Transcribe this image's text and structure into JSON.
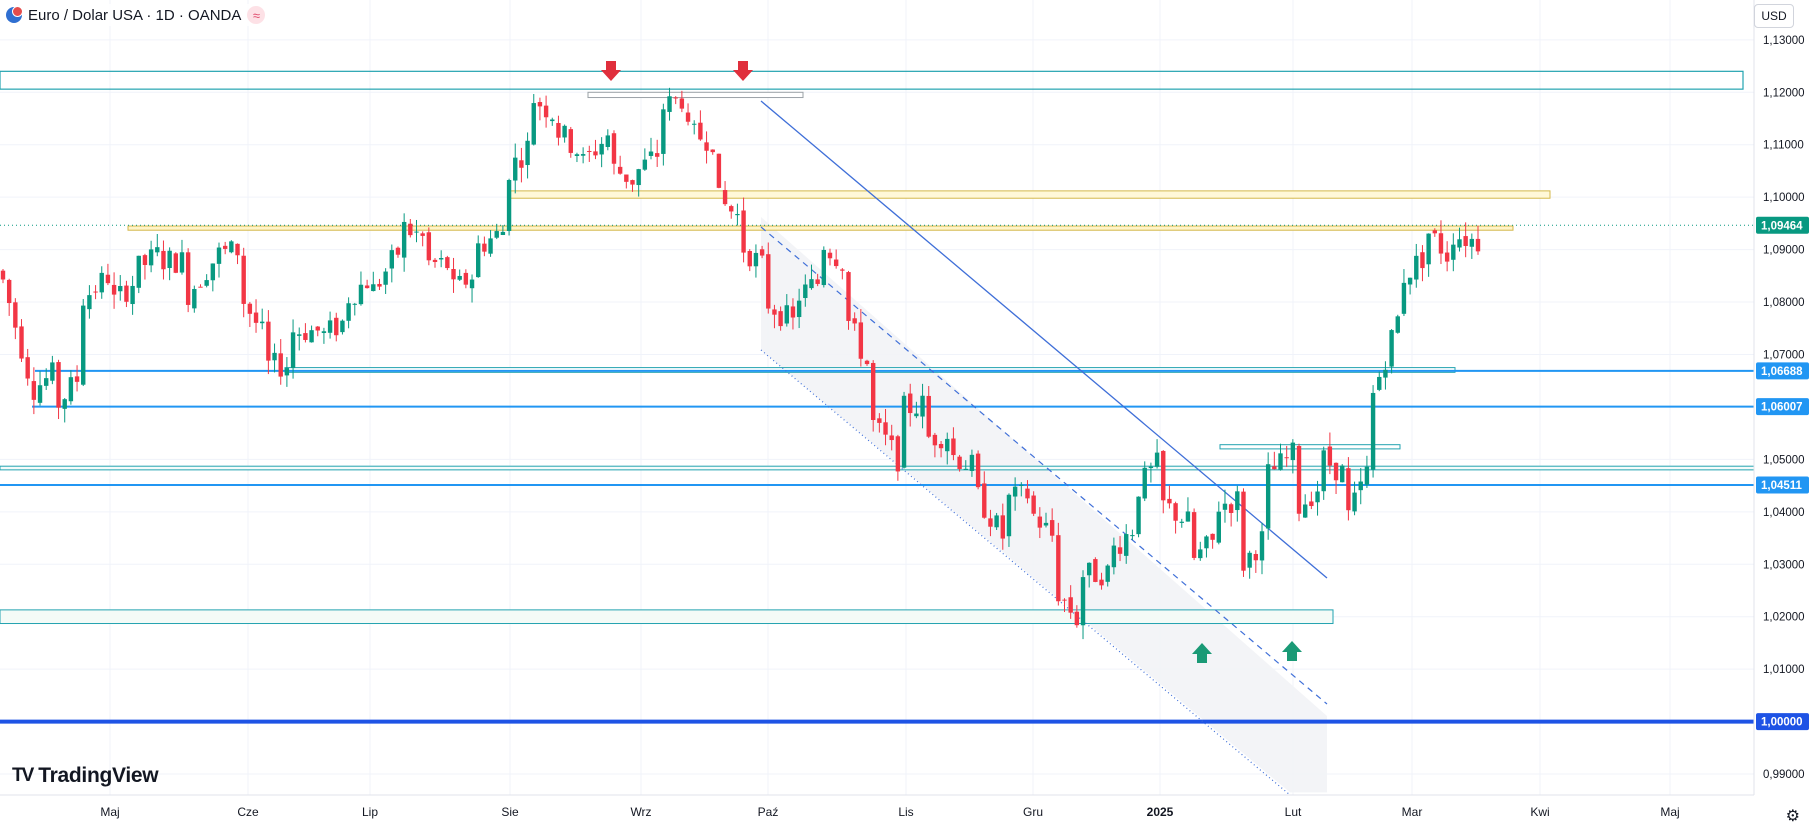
{
  "header": {
    "symbol_title": "Euro / Dolar USA · 1D · OANDA",
    "currency": "USD",
    "logo_text": "TradingView"
  },
  "chart_data": {
    "type": "candlestick",
    "price_range": [
      0.986,
      1.1376
    ],
    "y_ticks": [
      {
        "v": 1.13,
        "label": "1,13000"
      },
      {
        "v": 1.12,
        "label": "1,12000"
      },
      {
        "v": 1.11,
        "label": "1,11000"
      },
      {
        "v": 1.1,
        "label": "1,10000"
      },
      {
        "v": 1.09,
        "label": "1,09000"
      },
      {
        "v": 1.08,
        "label": "1,08000"
      },
      {
        "v": 1.07,
        "label": "1,07000"
      },
      {
        "v": 1.05,
        "label": "1,05000"
      },
      {
        "v": 1.04,
        "label": "1,04000"
      },
      {
        "v": 1.03,
        "label": "1,03000"
      },
      {
        "v": 1.02,
        "label": "1,02000"
      },
      {
        "v": 1.01,
        "label": "1,01000"
      },
      {
        "v": 0.99,
        "label": "0,99000"
      }
    ],
    "price_labels": [
      {
        "v": 1.09464,
        "label": "1,09464",
        "color": "#089981"
      },
      {
        "v": 1.06688,
        "label": "1,06688",
        "color": "#2196f3"
      },
      {
        "v": 1.06007,
        "label": "1,06007",
        "color": "#2196f3"
      },
      {
        "v": 1.04511,
        "label": "1,04511",
        "color": "#2196f3"
      },
      {
        "v": 1.0,
        "label": "1,00000",
        "color": "#1e53e5"
      }
    ],
    "x_axis": [
      "Maj",
      "Cze",
      "Lip",
      "Sie",
      "Wrz",
      "Paź",
      "Lis",
      "Gru",
      "2025",
      "Lut",
      "Mar",
      "Kwi",
      "Maj"
    ],
    "bull_color": "#089981",
    "bear_color": "#f23645",
    "path": [
      [
        1.086,
        1.084
      ],
      [
        1.066,
        1.063
      ],
      [
        1.0665,
        1.06
      ],
      [
        1.0665,
        1.0805
      ],
      [
        1.085,
        1.079
      ],
      [
        1.084,
        1.086
      ],
      [
        1.0895,
        1.088
      ],
      [
        1.0878,
        1.0815
      ],
      [
        1.088,
        1.089
      ],
      [
        1.09,
        1.0815
      ],
      [
        1.0725,
        1.0678
      ],
      [
        1.068,
        1.0745
      ],
      [
        1.0745,
        1.073
      ],
      [
        1.0765,
        1.0805
      ],
      [
        1.0848,
        1.0818
      ],
      [
        1.0895,
        1.0948
      ],
      [
        1.092,
        1.0875
      ],
      [
        1.087,
        1.0818
      ],
      [
        1.0858,
        1.0905
      ],
      [
        1.0935,
        1.104
      ],
      [
        1.11,
        1.1195
      ],
      [
        1.1155,
        1.113
      ],
      [
        1.108,
        1.1065
      ],
      [
        1.112,
        1.106
      ],
      [
        1.103,
        1.1045
      ],
      [
        1.109,
        1.117
      ],
      [
        1.1195,
        1.112
      ],
      [
        1.111,
        1.1
      ],
      [
        1.096,
        1.091
      ],
      [
        1.086,
        1.08
      ],
      [
        1.076,
        1.0805
      ],
      [
        1.084,
        1.092
      ],
      [
        1.087,
        1.0775
      ],
      [
        1.066,
        1.057
      ],
      [
        1.05,
        1.0595
      ],
      [
        1.0605,
        1.054
      ],
      [
        1.055,
        1.051
      ],
      [
        1.048,
        1.043
      ],
      [
        1.035,
        1.042
      ],
      [
        1.0435,
        1.04
      ],
      [
        1.0345,
        1.025
      ],
      [
        1.018,
        1.028
      ],
      [
        1.0285,
        1.032
      ],
      [
        1.0375,
        1.044
      ],
      [
        1.05,
        1.0415
      ],
      [
        1.038,
        1.03
      ],
      [
        1.0345,
        1.041
      ],
      [
        1.0425,
        1.0295
      ],
      [
        1.036,
        1.047
      ],
      [
        1.051,
        1.04
      ],
      [
        1.045,
        1.0505
      ],
      [
        1.047,
        1.038
      ],
      [
        1.05,
        1.062
      ],
      [
        1.0775,
        1.084
      ],
      [
        1.089,
        1.094
      ],
      [
        1.088,
        1.093
      ],
      [
        1.0915,
        1.0946
      ]
    ],
    "annotations": {
      "resistance_zones": [
        1.1236,
        1.1005,
        1.0938
      ],
      "support_zone": 1.019,
      "horizontal_levels": [
        1.06688,
        1.06007,
        1.04511,
        1.0
      ],
      "descending_channel": true,
      "sell_arrows": 2,
      "buy_arrows": 2
    }
  }
}
